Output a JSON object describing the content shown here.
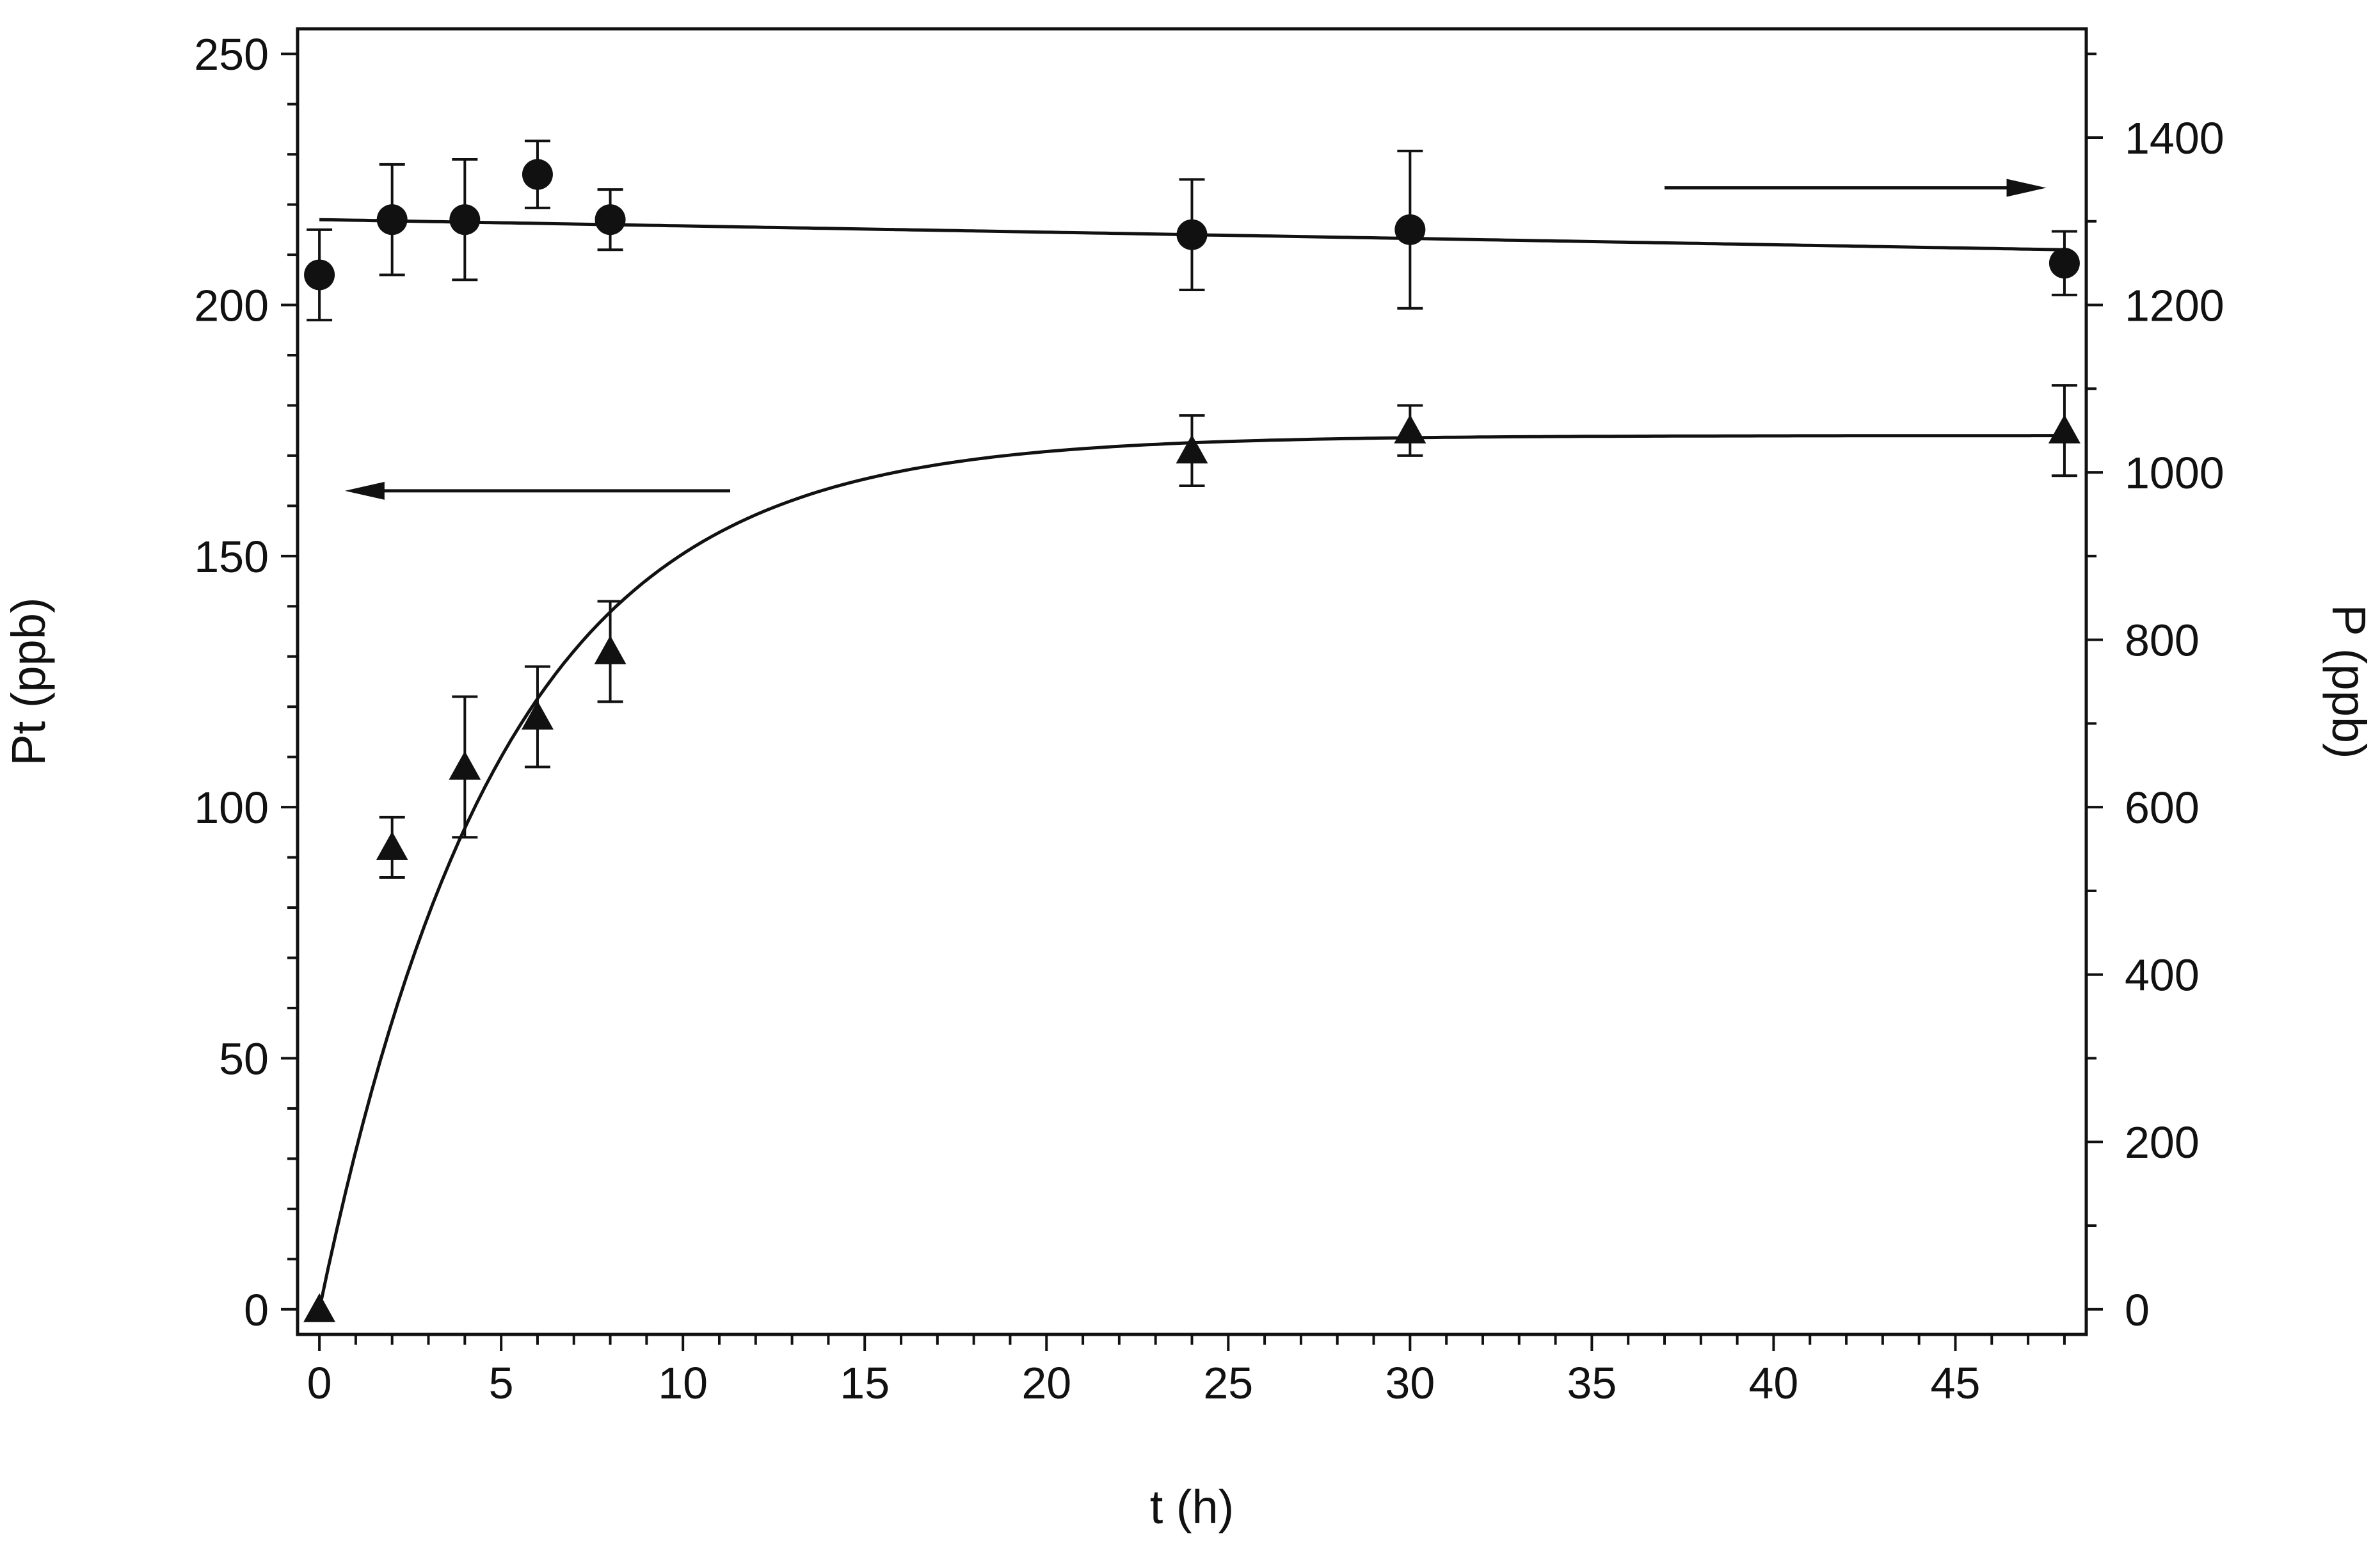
{
  "chart_data": {
    "type": "scatter",
    "title": "",
    "xlabel": "t (h)",
    "ylabel_left": "Pt (ppb)",
    "ylabel_right": "P (ppb)",
    "xlim": [
      -0.6,
      48.6
    ],
    "ylim_left": [
      -5,
      255
    ],
    "ylim_right": [
      -30,
      1530
    ],
    "x_ticks": [
      0,
      5,
      10,
      15,
      20,
      25,
      30,
      35,
      40,
      45
    ],
    "x_tick_labels": [
      "0",
      "5",
      "10",
      "15",
      "20",
      "25",
      "30",
      "35",
      "40",
      "45"
    ],
    "y_left_ticks": [
      0,
      50,
      100,
      150,
      200,
      250
    ],
    "y_left_tick_labels": [
      "0",
      "50",
      "100",
      "150",
      "200",
      "250"
    ],
    "y_right_ticks": [
      0,
      200,
      400,
      600,
      800,
      1000,
      1200,
      1400
    ],
    "y_right_tick_labels": [
      "0",
      "200",
      "400",
      "600",
      "800",
      "1000",
      "1200",
      "1400"
    ],
    "grid": false,
    "legend": "none",
    "series": [
      {
        "name": "Pt",
        "axis": "left",
        "marker": "triangle",
        "x": [
          0,
          2,
          4,
          6,
          8,
          24,
          30,
          48
        ],
        "y": [
          0,
          92,
          108,
          118,
          131,
          171,
          175,
          175
        ],
        "err": [
          0,
          6,
          14,
          10,
          10,
          7,
          5,
          9
        ],
        "fit": {
          "model": "saturation",
          "y_max": 174,
          "rate": 0.2,
          "x_range": [
            0,
            48
          ]
        },
        "annotation": "arrow pointing left"
      },
      {
        "name": "P",
        "axis": "right",
        "marker": "circle",
        "x": [
          0,
          2,
          4,
          6,
          8,
          24,
          30,
          48
        ],
        "y": [
          1236,
          1302,
          1302,
          1356,
          1302,
          1284,
          1290,
          1250
        ],
        "err": [
          54,
          66,
          72,
          40,
          36,
          66,
          94,
          38
        ],
        "fit": {
          "model": "linear",
          "y_start": 1302,
          "y_end": 1266,
          "x_range": [
            0,
            48
          ]
        },
        "annotation": "arrow pointing right"
      }
    ]
  }
}
